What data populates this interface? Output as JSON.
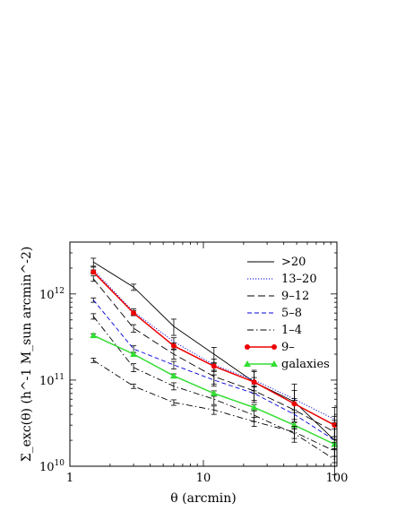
{
  "chart_data": {
    "type": "line",
    "xscale": "log",
    "yscale": "log",
    "xlim": [
      1,
      100
    ],
    "ylim": [
      10000000000.0,
      4000000000000.0
    ],
    "xlabel": "θ (arcmin)",
    "ylabel": "Σ_exc(θ)  (h^-1 M_sun arcmin^-2)",
    "x_ticks": [
      {
        "value": 1,
        "label": "1"
      },
      {
        "value": 10,
        "label": "10"
      },
      {
        "value": 100,
        "label": "100"
      }
    ],
    "y_ticks": [
      {
        "value": 10000000000.0,
        "base": "10",
        "exp": "10"
      },
      {
        "value": 100000000000.0,
        "base": "10",
        "exp": "11"
      },
      {
        "value": 1000000000000.0,
        "base": "10",
        "exp": "12"
      }
    ],
    "legend_position": "top-right",
    "x": [
      1.5,
      3,
      6,
      12,
      24,
      48,
      96
    ],
    "series": [
      {
        "name": ">20",
        "color": "#000000",
        "dash": "",
        "width": 0.9,
        "marker": "none",
        "values": [
          2350000000000.0,
          1200000000000.0,
          420000000000.0,
          200000000000.0,
          95000000000.0,
          56000000000.0,
          20000000000.0
        ],
        "err_lo": [
          2100000000000.0,
          1100000000000.0,
          330000000000.0,
          155000000000.0,
          70000000000.0,
          35000000000.0,
          13000000000.0
        ],
        "err_hi": [
          2600000000000.0,
          1300000000000.0,
          510000000000.0,
          240000000000.0,
          130000000000.0,
          90000000000.0,
          32000000000.0
        ]
      },
      {
        "name": "13–20",
        "color": "#0000dd",
        "dash": "1.2,1.8",
        "width": 0.9,
        "marker": "none",
        "values": [
          1900000000000.0,
          620000000000.0,
          280000000000.0,
          150000000000.0,
          100000000000.0,
          60000000000.0,
          35000000000.0
        ],
        "err_lo": [
          1750000000000.0,
          570000000000.0,
          250000000000.0,
          125000000000.0,
          75000000000.0,
          42000000000.0,
          22000000000.0
        ],
        "err_hi": [
          2050000000000.0,
          670000000000.0,
          310000000000.0,
          175000000000.0,
          125000000000.0,
          76000000000.0,
          48000000000.0
        ]
      },
      {
        "name": "9–12",
        "color": "#000000",
        "dash": "8,4",
        "width": 0.9,
        "marker": "none",
        "values": [
          1500000000000.0,
          400000000000.0,
          200000000000.0,
          110000000000.0,
          75000000000.0,
          45000000000.0,
          25000000000.0
        ],
        "err_lo": [
          1400000000000.0,
          360000000000.0,
          175000000000.0,
          90000000000.0,
          58000000000.0,
          32000000000.0,
          16000000000.0
        ],
        "err_hi": [
          1620000000000.0,
          440000000000.0,
          225000000000.0,
          130000000000.0,
          90000000000.0,
          58000000000.0,
          34000000000.0
        ]
      },
      {
        "name": "5–8",
        "color": "#0000dd",
        "dash": "5,3",
        "width": 0.9,
        "marker": "none",
        "values": [
          850000000000.0,
          230000000000.0,
          150000000000.0,
          100000000000.0,
          70000000000.0,
          40000000000.0,
          20000000000.0
        ],
        "err_lo": [
          800000000000.0,
          210000000000.0,
          135000000000.0,
          85000000000.0,
          55000000000.0,
          28000000000.0,
          13000000000.0
        ],
        "err_hi": [
          900000000000.0,
          250000000000.0,
          165000000000.0,
          115000000000.0,
          85000000000.0,
          52000000000.0,
          27000000000.0
        ]
      },
      {
        "name": "1–4",
        "color": "#000000",
        "dash": "7,3,1.5,3",
        "width": 0.9,
        "marker": "none",
        "values": [
          550000000000.0,
          140000000000.0,
          85000000000.0,
          60000000000.0,
          39000000000.0,
          24000000000.0,
          12000000000.0
        ],
        "err_lo": [
          510000000000.0,
          125000000000.0,
          77000000000.0,
          52000000000.0,
          33000000000.0,
          19000000000.0,
          8000000000.0
        ],
        "err_hi": [
          590000000000.0,
          155000000000.0,
          93000000000.0,
          68000000000.0,
          45000000000.0,
          29000000000.0,
          16000000000.0
        ]
      },
      {
        "name": "9–",
        "color": "#ee0000",
        "dash": "",
        "width": 1.5,
        "marker": "circle",
        "values": [
          1800000000000.0,
          600000000000.0,
          250000000000.0,
          145000000000.0,
          95000000000.0,
          53000000000.0,
          30000000000.0
        ],
        "err_lo": [
          1700000000000.0,
          560000000000.0,
          230000000000.0,
          130000000000.0,
          83000000000.0,
          45000000000.0,
          22000000000.0
        ],
        "err_hi": [
          1900000000000.0,
          640000000000.0,
          270000000000.0,
          160000000000.0,
          107000000000.0,
          61000000000.0,
          38000000000.0
        ]
      },
      {
        "name": "galaxies",
        "color": "#33dd33",
        "dash": "",
        "width": 1.5,
        "marker": "triangle",
        "values": [
          330000000000.0,
          200000000000.0,
          112000000000.0,
          70000000000.0,
          48000000000.0,
          30000000000.0,
          18000000000.0
        ],
        "err_lo": [
          315000000000.0,
          190000000000.0,
          106000000000.0,
          65000000000.0,
          44000000000.0,
          27000000000.0,
          15500000000.0
        ],
        "err_hi": [
          345000000000.0,
          210000000000.0,
          118000000000.0,
          75000000000.0,
          52000000000.0,
          33000000000.0,
          20500000000.0
        ]
      },
      {
        "name": "",
        "color": "#000000",
        "dash": "7,3,1.5,3",
        "width": 0.9,
        "marker": "none",
        "values": [
          170000000000.0,
          85000000000.0,
          55000000000.0,
          45000000000.0,
          33000000000.0,
          25000000000.0,
          15000000000.0
        ],
        "err_lo": [
          160000000000.0,
          80000000000.0,
          51000000000.0,
          40000000000.0,
          29000000000.0,
          21000000000.0,
          11000000000.0
        ],
        "err_hi": [
          180000000000.0,
          90000000000.0,
          59000000000.0,
          50000000000.0,
          37000000000.0,
          29000000000.0,
          19000000000.0
        ]
      }
    ]
  }
}
